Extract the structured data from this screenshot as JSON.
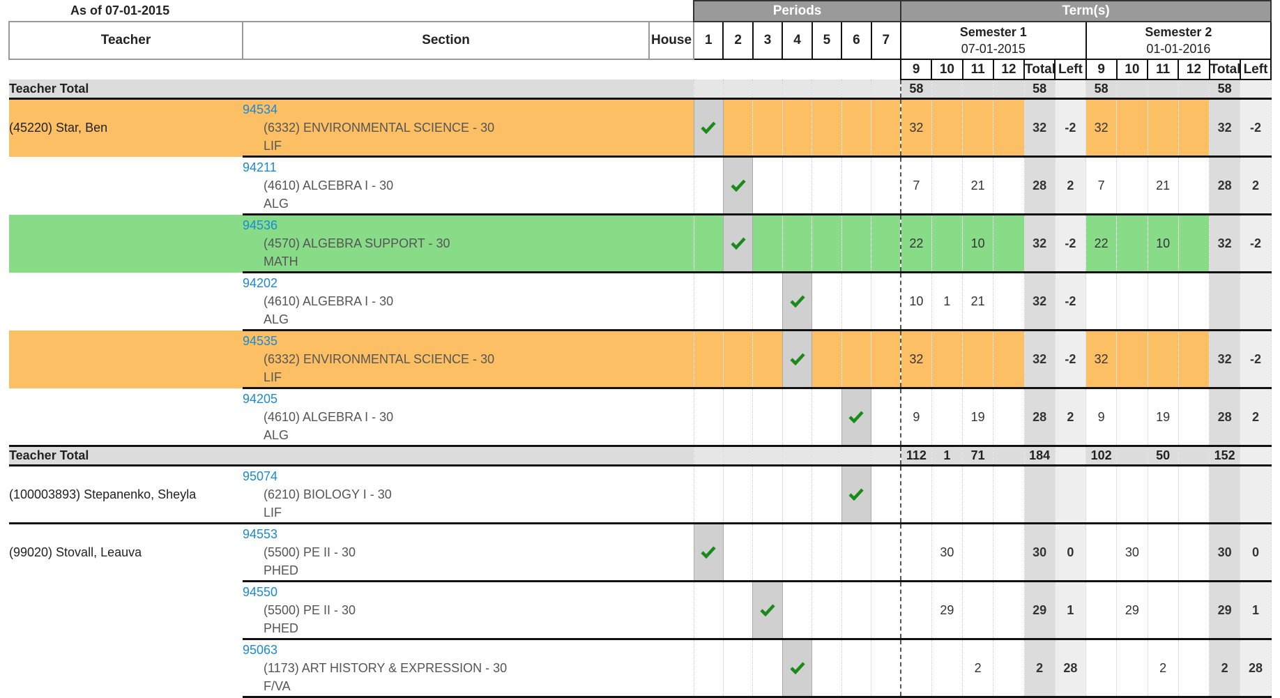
{
  "header": {
    "as_of": "As of 07-01-2015",
    "periods_label": "Periods",
    "terms_label": "Term(s)",
    "teacher_label": "Teacher",
    "section_label": "Section",
    "house_label": "House",
    "periods": [
      "1",
      "2",
      "3",
      "4",
      "5",
      "6",
      "7"
    ],
    "semesters": [
      {
        "name": "Semester 1",
        "date": "07-01-2015"
      },
      {
        "name": "Semester 2",
        "date": "01-01-2016"
      }
    ],
    "sub_columns": [
      "9",
      "10",
      "11",
      "12",
      "Total",
      "Left",
      "9",
      "10",
      "11",
      "12",
      "Total",
      "Left"
    ]
  },
  "colors": {
    "orange": "#fcbf63",
    "green": "#88dc88",
    "link": "#1a8ad4",
    "check": "#1a8a1a"
  },
  "rows": [
    {
      "type": "total",
      "label": "Teacher Total",
      "values": [
        "58",
        "",
        "",
        "",
        "58",
        "",
        "58",
        "",
        "",
        "",
        "58",
        ""
      ]
    },
    {
      "type": "section",
      "teacher": "(45220) Star, Ben",
      "id": "94534",
      "course": "(6332) ENVIRONMENTAL SCIENCE - 30",
      "dept": "LIF",
      "period": 1,
      "color": "orange",
      "values": [
        "32",
        "",
        "",
        "",
        "32",
        "-2",
        "32",
        "",
        "",
        "",
        "32",
        "-2"
      ]
    },
    {
      "type": "section",
      "teacher": "",
      "id": "94211",
      "course": "(4610) ALGEBRA I - 30",
      "dept": "ALG",
      "period": 2,
      "color": "",
      "values": [
        "7",
        "",
        "21",
        "",
        "28",
        "2",
        "7",
        "",
        "21",
        "",
        "28",
        "2"
      ]
    },
    {
      "type": "section",
      "teacher": "",
      "id": "94536",
      "course": "(4570) ALGEBRA SUPPORT - 30",
      "dept": "MATH",
      "period": 2,
      "color": "green",
      "values": [
        "22",
        "",
        "10",
        "",
        "32",
        "-2",
        "22",
        "",
        "10",
        "",
        "32",
        "-2"
      ]
    },
    {
      "type": "section",
      "teacher": "",
      "id": "94202",
      "course": "(4610) ALGEBRA I - 30",
      "dept": "ALG",
      "period": 4,
      "color": "",
      "values": [
        "10",
        "1",
        "21",
        "",
        "32",
        "-2",
        "",
        "",
        "",
        "",
        "",
        ""
      ]
    },
    {
      "type": "section",
      "teacher": "",
      "id": "94535",
      "course": "(6332) ENVIRONMENTAL SCIENCE - 30",
      "dept": "LIF",
      "period": 4,
      "color": "orange",
      "values": [
        "32",
        "",
        "",
        "",
        "32",
        "-2",
        "32",
        "",
        "",
        "",
        "32",
        "-2"
      ]
    },
    {
      "type": "section",
      "teacher": "",
      "id": "94205",
      "course": "(4610) ALGEBRA I - 30",
      "dept": "ALG",
      "period": 6,
      "color": "",
      "values": [
        "9",
        "",
        "19",
        "",
        "28",
        "2",
        "9",
        "",
        "19",
        "",
        "28",
        "2"
      ]
    },
    {
      "type": "total",
      "label": "Teacher Total",
      "values": [
        "112",
        "1",
        "71",
        "",
        "184",
        "",
        "102",
        "",
        "50",
        "",
        "152",
        ""
      ]
    },
    {
      "type": "section",
      "teacher": "(100003893) Stepanenko, Sheyla",
      "id": "95074",
      "course": "(6210) BIOLOGY I - 30",
      "dept": "LIF",
      "period": 6,
      "color": "",
      "values": [
        "",
        "",
        "",
        "",
        "",
        "",
        "",
        "",
        "",
        "",
        "",
        ""
      ]
    },
    {
      "type": "section",
      "teacher": "(99020) Stovall, Leauva",
      "id": "94553",
      "course": "(5500) PE II - 30",
      "dept": "PHED",
      "period": 1,
      "color": "",
      "values": [
        "",
        "30",
        "",
        "",
        "30",
        "0",
        "",
        "30",
        "",
        "",
        "30",
        "0"
      ]
    },
    {
      "type": "section",
      "teacher": "",
      "id": "94550",
      "course": "(5500) PE II - 30",
      "dept": "PHED",
      "period": 3,
      "color": "",
      "values": [
        "",
        "29",
        "",
        "",
        "29",
        "1",
        "",
        "29",
        "",
        "",
        "29",
        "1"
      ]
    },
    {
      "type": "section",
      "teacher": "",
      "id": "95063",
      "course": "(1173) ART HISTORY & EXPRESSION - 30",
      "dept": "F/VA",
      "period": 4,
      "color": "",
      "values": [
        "",
        "",
        "2",
        "",
        "2",
        "28",
        "",
        "",
        "2",
        "",
        "2",
        "28"
      ]
    }
  ]
}
